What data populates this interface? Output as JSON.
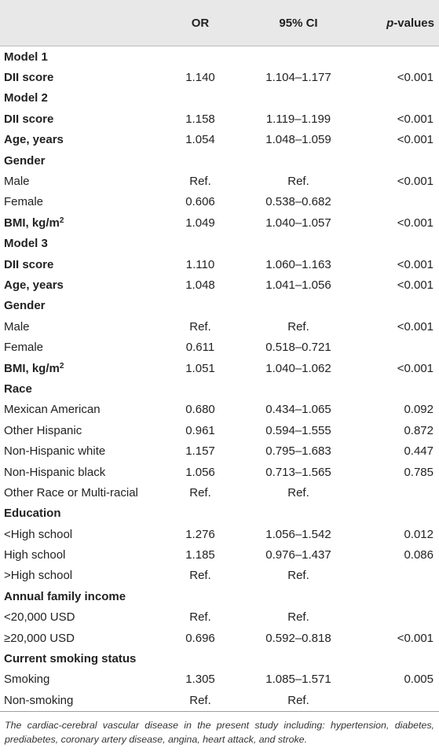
{
  "header": {
    "col0": "",
    "col1": "OR",
    "col2": "95% CI",
    "col3_italic": "p",
    "col3_rest": "-values"
  },
  "rows": [
    {
      "label": "Model 1",
      "style": "sec",
      "or": "",
      "ci": "",
      "p": ""
    },
    {
      "label": "DII score",
      "style": "bold",
      "or": "1.140",
      "ci": "1.104–1.177",
      "p": "<0.001"
    },
    {
      "label": "Model 2",
      "style": "sec",
      "or": "",
      "ci": "",
      "p": ""
    },
    {
      "label": "DII score",
      "style": "bold",
      "or": "1.158",
      "ci": "1.119–1.199",
      "p": "<0.001"
    },
    {
      "label": "Age, years",
      "style": "bold",
      "or": "1.054",
      "ci": "1.048–1.059",
      "p": "<0.001"
    },
    {
      "label": "Gender",
      "style": "sec",
      "or": "",
      "ci": "",
      "p": ""
    },
    {
      "label": "Male",
      "style": "plain",
      "or": "Ref.",
      "ci": "Ref.",
      "p": "<0.001"
    },
    {
      "label": "Female",
      "style": "plain",
      "or": "0.606",
      "ci": "0.538–0.682",
      "p": ""
    },
    {
      "label": "BMI, kg/m",
      "sup": "2",
      "style": "bold",
      "or": "1.049",
      "ci": "1.040–1.057",
      "p": "<0.001"
    },
    {
      "label": "Model 3",
      "style": "sec",
      "or": "",
      "ci": "",
      "p": ""
    },
    {
      "label": "DII score",
      "style": "bold",
      "or": "1.110",
      "ci": "1.060–1.163",
      "p": "<0.001"
    },
    {
      "label": "Age, years",
      "style": "bold",
      "or": "1.048",
      "ci": "1.041–1.056",
      "p": "<0.001"
    },
    {
      "label": "Gender",
      "style": "sec",
      "or": "",
      "ci": "",
      "p": ""
    },
    {
      "label": "Male",
      "style": "plain",
      "or": "Ref.",
      "ci": "Ref.",
      "p": "<0.001"
    },
    {
      "label": "Female",
      "style": "plain",
      "or": "0.611",
      "ci": "0.518–0.721",
      "p": ""
    },
    {
      "label": "BMI, kg/m",
      "sup": "2",
      "style": "bold",
      "or": "1.051",
      "ci": "1.040–1.062",
      "p": "<0.001"
    },
    {
      "label": "Race",
      "style": "sec",
      "or": "",
      "ci": "",
      "p": ""
    },
    {
      "label": "Mexican American",
      "style": "plain",
      "or": "0.680",
      "ci": "0.434–1.065",
      "p": "0.092"
    },
    {
      "label": "Other Hispanic",
      "style": "plain",
      "or": "0.961",
      "ci": "0.594–1.555",
      "p": "0.872"
    },
    {
      "label": "Non-Hispanic white",
      "style": "plain",
      "or": "1.157",
      "ci": "0.795–1.683",
      "p": "0.447"
    },
    {
      "label": "Non-Hispanic black",
      "style": "plain",
      "or": "1.056",
      "ci": "0.713–1.565",
      "p": "0.785"
    },
    {
      "label": "Other Race or Multi-racial",
      "style": "plain",
      "or": "Ref.",
      "ci": "Ref.",
      "p": ""
    },
    {
      "label": "Education",
      "style": "sec",
      "or": "",
      "ci": "",
      "p": ""
    },
    {
      "label": "<High school",
      "style": "plain",
      "or": "1.276",
      "ci": "1.056–1.542",
      "p": "0.012"
    },
    {
      "label": "High school",
      "style": "plain",
      "or": "1.185",
      "ci": "0.976–1.437",
      "p": "0.086"
    },
    {
      "label": ">High school",
      "style": "plain",
      "or": "Ref.",
      "ci": "Ref.",
      "p": ""
    },
    {
      "label": "Annual family income",
      "style": "sec",
      "or": "",
      "ci": "",
      "p": ""
    },
    {
      "label": "<20,000 USD",
      "style": "plain",
      "or": "Ref.",
      "ci": "Ref.",
      "p": ""
    },
    {
      "label": "≥20,000 USD",
      "style": "plain",
      "or": "0.696",
      "ci": "0.592–0.818",
      "p": "<0.001"
    },
    {
      "label": "Current smoking status",
      "style": "sec",
      "or": "",
      "ci": "",
      "p": ""
    },
    {
      "label": "Smoking",
      "style": "plain",
      "or": "1.305",
      "ci": "1.085–1.571",
      "p": "0.005"
    },
    {
      "label": "Non-smoking",
      "style": "plain",
      "or": "Ref.",
      "ci": "Ref.",
      "p": ""
    }
  ],
  "footnote": "The cardiac-cerebral vascular disease in the present study including: hypertension, diabetes, prediabetes, coronary artery disease, angina, heart attack, and stroke."
}
